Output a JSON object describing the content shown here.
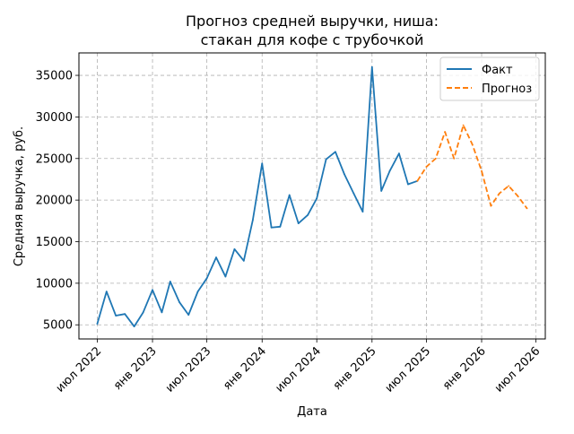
{
  "chart_data": {
    "type": "line",
    "title_line1": "Прогноз средней выручки, ниша:",
    "title_line2": "стакан для кофе с трубочкой",
    "xlabel": "Дата",
    "ylabel": "Средняя выручка, руб.",
    "x_ticks": [
      {
        "date": "2022-07-01",
        "label": "июл 2022"
      },
      {
        "date": "2023-01-01",
        "label": "янв 2023"
      },
      {
        "date": "2023-07-01",
        "label": "июл 2023"
      },
      {
        "date": "2024-01-01",
        "label": "янв 2024"
      },
      {
        "date": "2024-07-01",
        "label": "июл 2024"
      },
      {
        "date": "2025-01-01",
        "label": "янв 2025"
      },
      {
        "date": "2025-07-01",
        "label": "июл 2025"
      },
      {
        "date": "2026-01-01",
        "label": "янв 2026"
      },
      {
        "date": "2026-07-01",
        "label": "июл 2026"
      }
    ],
    "y_ticks": [
      5000,
      10000,
      15000,
      20000,
      25000,
      30000,
      35000
    ],
    "xlim": [
      "2022-05-01",
      "2026-08-01"
    ],
    "ylim": [
      3300,
      37700
    ],
    "grid": true,
    "legend_position": "top-right",
    "series": [
      {
        "name": "Факт",
        "color": "#1f77b4",
        "style": "solid",
        "points": [
          {
            "x": "2022-07-01",
            "y": 5100
          },
          {
            "x": "2022-08-01",
            "y": 9000
          },
          {
            "x": "2022-09-01",
            "y": 6100
          },
          {
            "x": "2022-10-01",
            "y": 6300
          },
          {
            "x": "2022-11-01",
            "y": 4800
          },
          {
            "x": "2022-12-01",
            "y": 6500
          },
          {
            "x": "2023-01-01",
            "y": 9200
          },
          {
            "x": "2023-02-01",
            "y": 6500
          },
          {
            "x": "2023-03-01",
            "y": 10200
          },
          {
            "x": "2023-04-01",
            "y": 7700
          },
          {
            "x": "2023-05-01",
            "y": 6200
          },
          {
            "x": "2023-06-01",
            "y": 9000
          },
          {
            "x": "2023-07-01",
            "y": 10600
          },
          {
            "x": "2023-08-01",
            "y": 13100
          },
          {
            "x": "2023-09-01",
            "y": 10800
          },
          {
            "x": "2023-10-01",
            "y": 14100
          },
          {
            "x": "2023-11-01",
            "y": 12700
          },
          {
            "x": "2023-12-01",
            "y": 17600
          },
          {
            "x": "2024-01-01",
            "y": 24400
          },
          {
            "x": "2024-02-01",
            "y": 16700
          },
          {
            "x": "2024-03-01",
            "y": 16800
          },
          {
            "x": "2024-04-01",
            "y": 20600
          },
          {
            "x": "2024-05-01",
            "y": 17200
          },
          {
            "x": "2024-06-01",
            "y": 18200
          },
          {
            "x": "2024-07-01",
            "y": 20200
          },
          {
            "x": "2024-08-01",
            "y": 24900
          },
          {
            "x": "2024-09-01",
            "y": 25800
          },
          {
            "x": "2024-10-01",
            "y": 23100
          },
          {
            "x": "2024-11-01",
            "y": 20800
          },
          {
            "x": "2024-12-01",
            "y": 18600
          },
          {
            "x": "2025-01-01",
            "y": 36000
          },
          {
            "x": "2025-02-01",
            "y": 21100
          },
          {
            "x": "2025-03-01",
            "y": 23500
          },
          {
            "x": "2025-04-01",
            "y": 25600
          },
          {
            "x": "2025-05-01",
            "y": 21900
          },
          {
            "x": "2025-06-01",
            "y": 22300
          }
        ]
      },
      {
        "name": "Прогноз",
        "color": "#ff7f0e",
        "style": "dashed",
        "points": [
          {
            "x": "2025-06-01",
            "y": 22300
          },
          {
            "x": "2025-07-01",
            "y": 24000
          },
          {
            "x": "2025-08-01",
            "y": 25000
          },
          {
            "x": "2025-09-01",
            "y": 28200
          },
          {
            "x": "2025-10-01",
            "y": 25000
          },
          {
            "x": "2025-11-01",
            "y": 29000
          },
          {
            "x": "2025-12-01",
            "y": 26700
          },
          {
            "x": "2026-01-01",
            "y": 23500
          },
          {
            "x": "2026-02-01",
            "y": 19300
          },
          {
            "x": "2026-03-01",
            "y": 20800
          },
          {
            "x": "2026-04-01",
            "y": 21700
          },
          {
            "x": "2026-05-01",
            "y": 20500
          },
          {
            "x": "2026-06-01",
            "y": 19000
          }
        ]
      }
    ]
  }
}
